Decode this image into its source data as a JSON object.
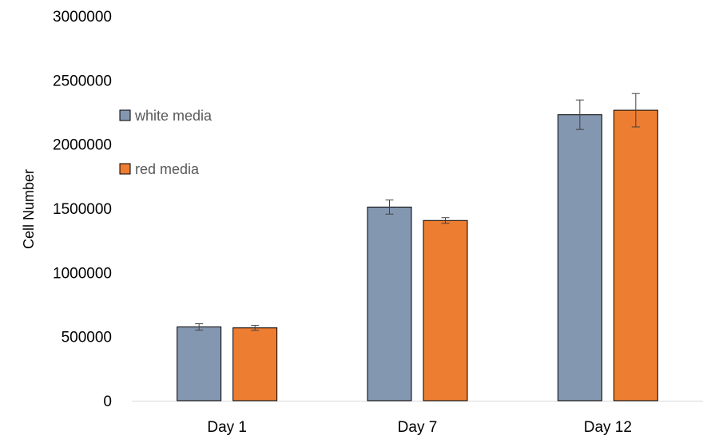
{
  "chart_data": {
    "type": "bar",
    "title": "",
    "xlabel": "",
    "ylabel": "Cell Number",
    "ylim": [
      0,
      3000000
    ],
    "yticks": [
      0,
      500000,
      1000000,
      1500000,
      2000000,
      2500000,
      3000000
    ],
    "grid": false,
    "legend_position": "left",
    "categories": [
      "Day 1",
      "Day 7",
      "Day 12"
    ],
    "series": [
      {
        "name": "white media",
        "color": "#8497B0",
        "values": [
          575000,
          1510000,
          2230000
        ],
        "errors": [
          25000,
          55000,
          115000
        ]
      },
      {
        "name": "red media",
        "color": "#ED7D31",
        "values": [
          568000,
          1405000,
          2265000
        ],
        "errors": [
          20000,
          22000,
          130000
        ]
      }
    ]
  }
}
